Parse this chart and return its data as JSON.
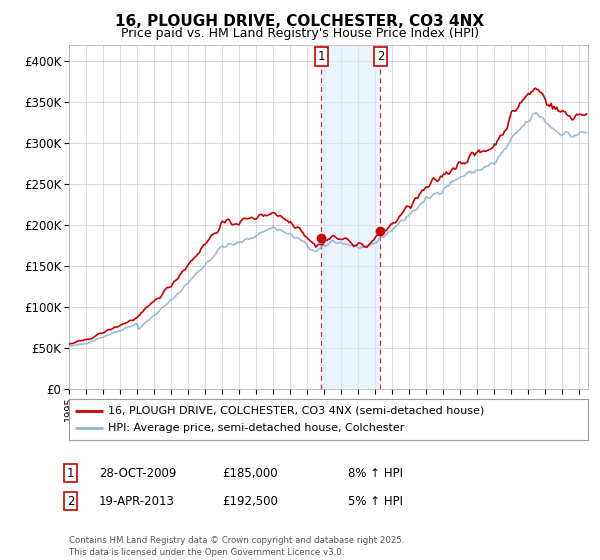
{
  "title": "16, PLOUGH DRIVE, COLCHESTER, CO3 4NX",
  "subtitle": "Price paid vs. HM Land Registry's House Price Index (HPI)",
  "ylim": [
    0,
    420000
  ],
  "yticks": [
    0,
    50000,
    100000,
    150000,
    200000,
    250000,
    300000,
    350000,
    400000
  ],
  "ytick_labels": [
    "£0",
    "£50K",
    "£100K",
    "£150K",
    "£200K",
    "£250K",
    "£300K",
    "£350K",
    "£400K"
  ],
  "hpi_color": "#91b4d5",
  "price_color": "#cc0000",
  "transaction1_x": 2009.83,
  "transaction1_y": 185000,
  "transaction1_date": "28-OCT-2009",
  "transaction1_price": 185000,
  "transaction1_hpi_text": "8% ↑ HPI",
  "transaction2_x": 2013.3,
  "transaction2_y": 192500,
  "transaction2_date": "19-APR-2013",
  "transaction2_price": 192500,
  "transaction2_hpi_text": "5% ↑ HPI",
  "legend_line1": "16, PLOUGH DRIVE, COLCHESTER, CO3 4NX (semi-detached house)",
  "legend_line2": "HPI: Average price, semi-detached house, Colchester",
  "footer": "Contains HM Land Registry data © Crown copyright and database right 2025.\nThis data is licensed under the Open Government Licence v3.0.",
  "background_color": "#ffffff",
  "grid_color": "#cccccc",
  "shaded_color": "#ddeeff",
  "xlim_left": 1995.0,
  "xlim_right": 2025.5
}
